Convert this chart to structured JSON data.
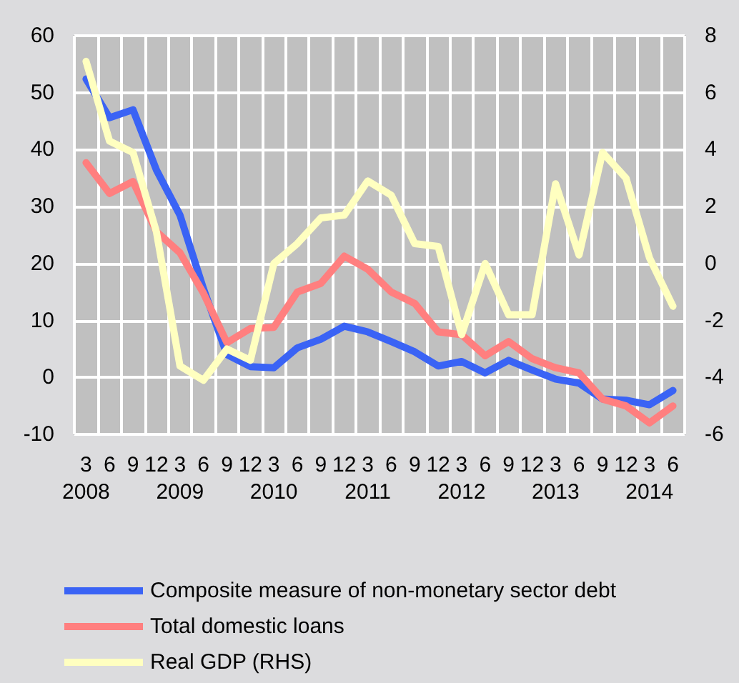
{
  "chart_data": {
    "type": "line",
    "categories": [
      "3\n2008",
      "6",
      "9",
      "12",
      "3\n2009",
      "6",
      "9",
      "12",
      "3\n2010",
      "6",
      "9",
      "12",
      "3\n2011",
      "6",
      "9",
      "12",
      "3\n2012",
      "6",
      "9",
      "12",
      "3\n2013",
      "6",
      "9",
      "12",
      "3\n2014",
      "6"
    ],
    "series": [
      {
        "name": "Composite measure of non-monetary sector debt",
        "color": "#3a63f5",
        "values": [
          52.4,
          45.6,
          47,
          36.4,
          28.5,
          15.6,
          4,
          1.9,
          1.7,
          5.2,
          6.7,
          9,
          8,
          6.3,
          4.5,
          2,
          2.8,
          0.8,
          3,
          1.3,
          -0.3,
          -1,
          -3.8,
          -4,
          -4.8,
          -2.3
        ]
      },
      {
        "name": "Total domestic loans",
        "color": "#ff7f7f",
        "values": [
          37.7,
          32.3,
          34.4,
          25.6,
          21.9,
          14.8,
          6.1,
          8.6,
          8.8,
          15,
          16.5,
          21.3,
          19,
          15,
          13,
          8,
          7.5,
          3.8,
          6.3,
          3.3,
          1.7,
          0.8,
          -3.8,
          -5,
          -8,
          -5
        ]
      },
      {
        "name": "Real GDP (RHS)",
        "color": "#ffffc0",
        "axis": "y2",
        "values": [
          7.1,
          4.3,
          3.9,
          1.1,
          -3.6,
          -4.1,
          -3,
          -3.4,
          0,
          0.7,
          1.6,
          1.7,
          2.9,
          2.4,
          0.7,
          0.6,
          -2.5,
          0,
          -1.8,
          -1.8,
          2.8,
          0.3,
          3.9,
          3,
          0.2,
          -1.5
        ]
      }
    ],
    "ylim": [
      -10,
      60
    ],
    "yticks": [
      -10,
      0,
      10,
      20,
      30,
      40,
      50,
      60
    ],
    "y2lim": [
      -6,
      8
    ],
    "y2ticks": [
      -6,
      -4,
      -2,
      0,
      2,
      4,
      6,
      8
    ],
    "grid": true,
    "legend": "bottom",
    "marker": "none",
    "line_style": "solid"
  }
}
